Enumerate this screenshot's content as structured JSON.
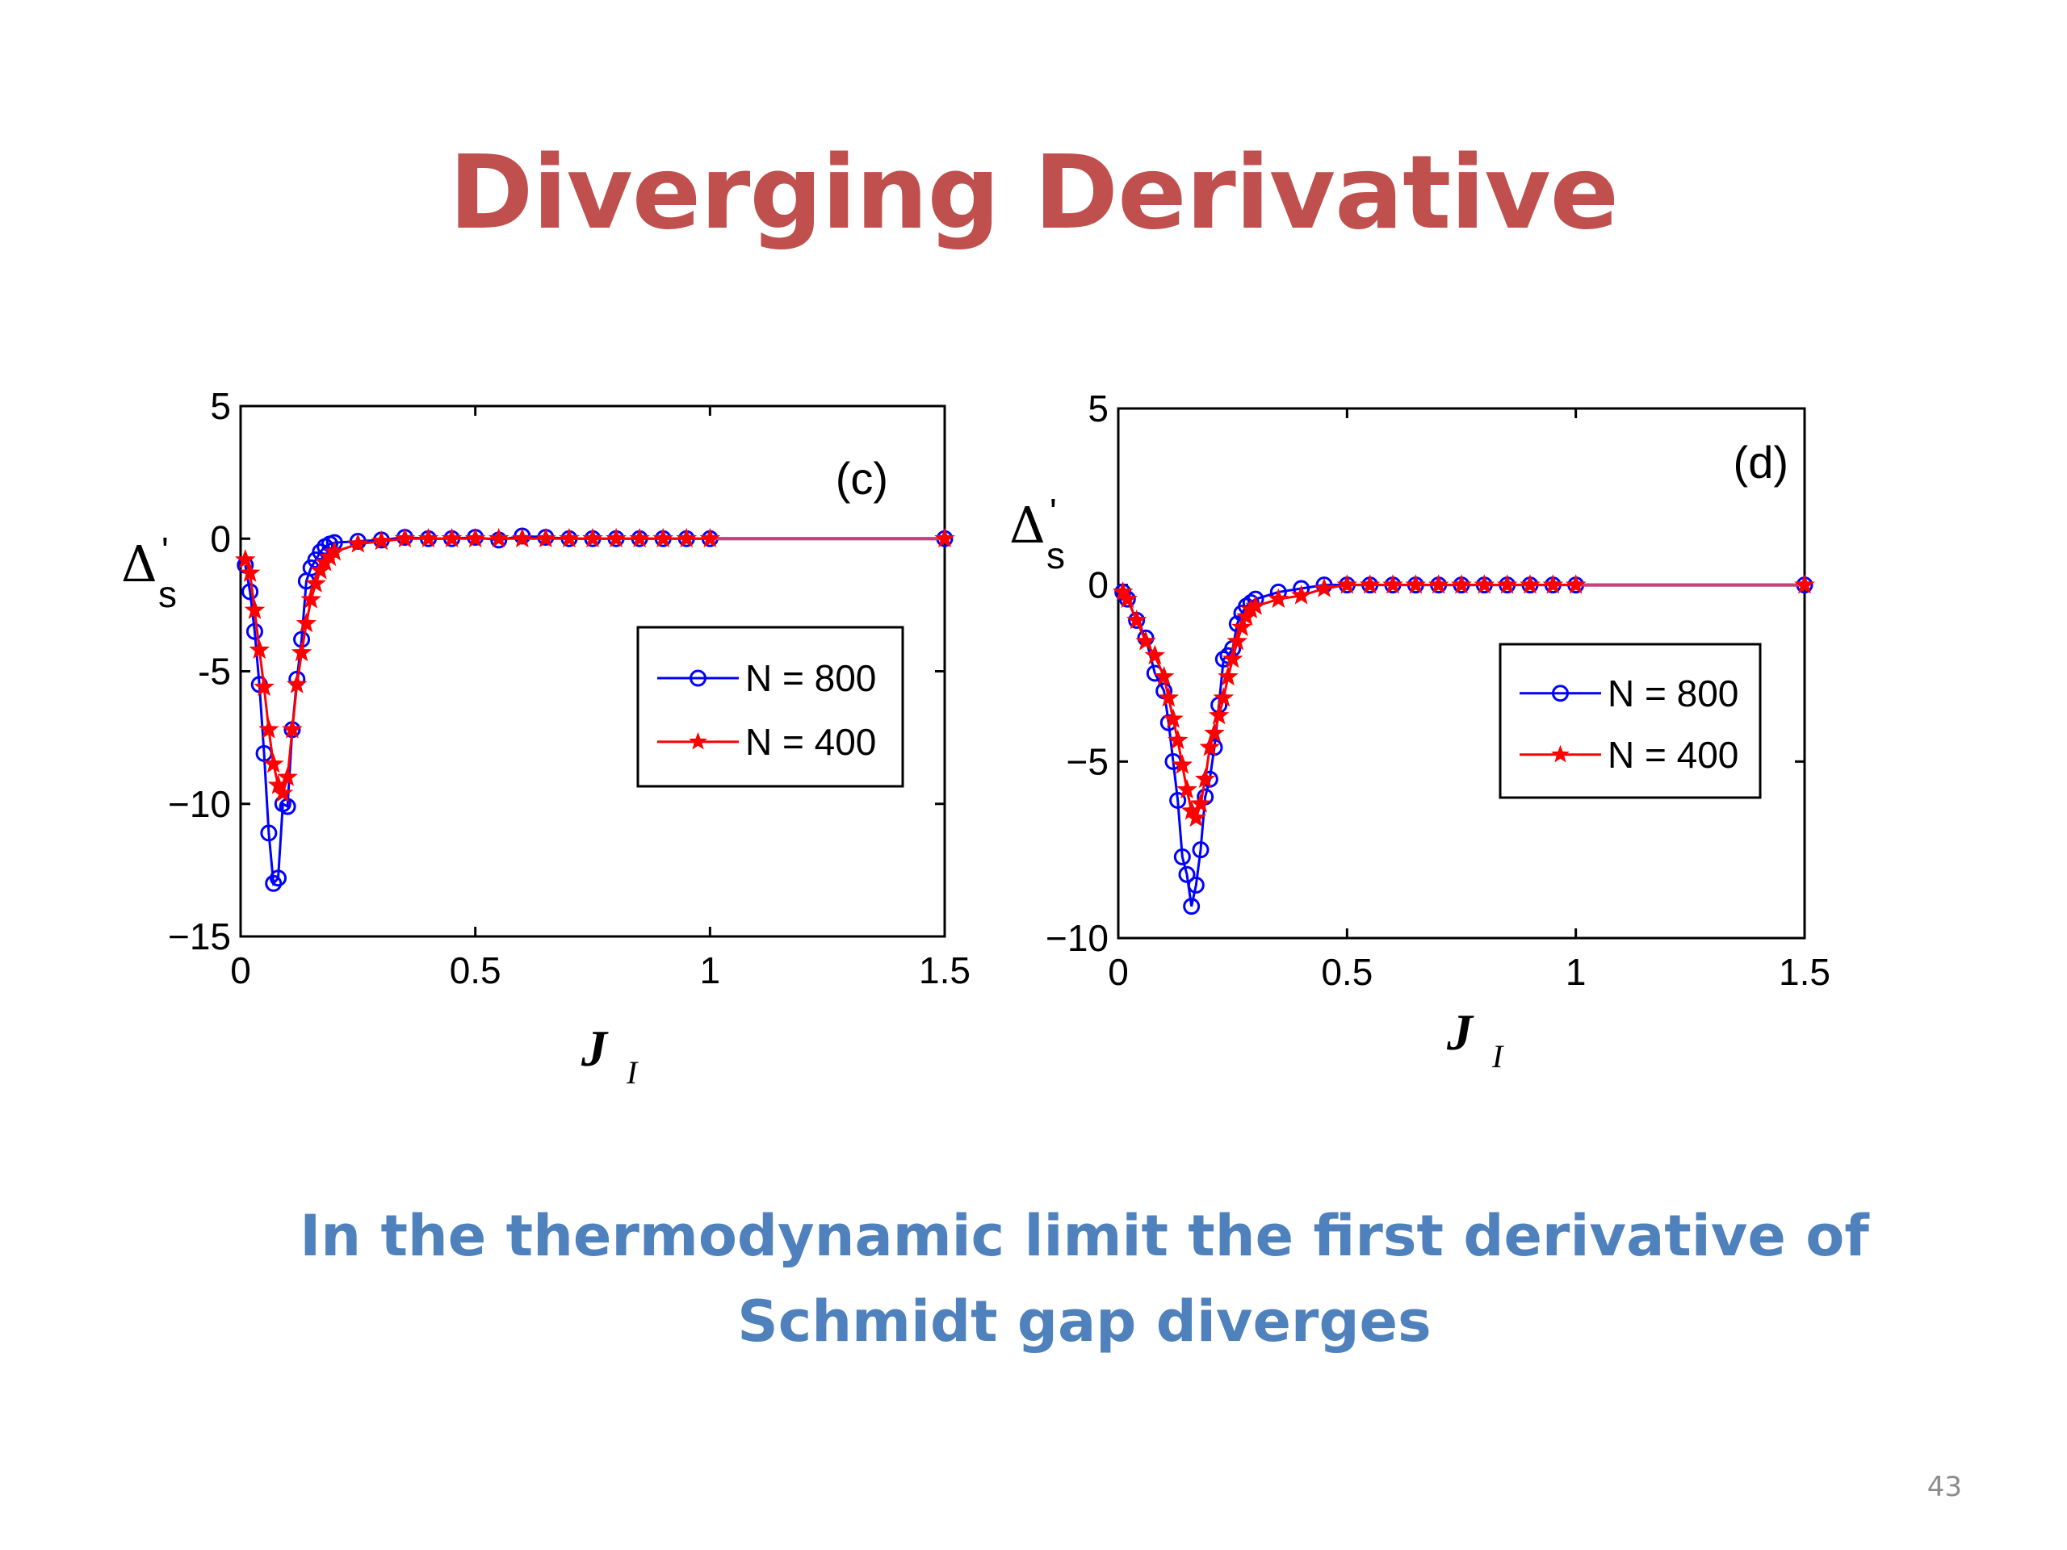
{
  "slide": {
    "title": "Diverging Derivative",
    "caption_line1": "In the thermodynamic limit the first derivative of",
    "caption_line2": "Schmidt gap diverges",
    "page_number": "43"
  },
  "colors": {
    "title": "#c0504d",
    "caption": "#4f81bd",
    "series_n800": "#0000ff",
    "series_n400": "#ff0000",
    "tail_line": "#c8407a"
  },
  "chart_data": [
    {
      "type": "line",
      "panel_label": "(c)",
      "xlabel": "J",
      "xlabel_sub": "I",
      "ylabel": "Δ",
      "ylabel_sub": "s",
      "ylabel_prime": "'",
      "xlim": [
        0,
        1.5
      ],
      "ylim": [
        -15,
        5
      ],
      "xticks": [
        0,
        0.5,
        1,
        1.5
      ],
      "xtick_labels": [
        "0",
        "0.5",
        "1",
        "1.5"
      ],
      "yticks": [
        5,
        0,
        -5,
        -10,
        -15
      ],
      "ytick_labels": [
        "5",
        "0",
        "-5",
        "−10",
        "−15"
      ],
      "grid": false,
      "legend_position": "right",
      "series": [
        {
          "name": "N = 800",
          "color": "#0000ff",
          "marker": "circle",
          "x": [
            0.01,
            0.02,
            0.03,
            0.04,
            0.05,
            0.06,
            0.07,
            0.08,
            0.09,
            0.1,
            0.11,
            0.12,
            0.13,
            0.14,
            0.15,
            0.16,
            0.17,
            0.18,
            0.19,
            0.2,
            0.25,
            0.3,
            0.35,
            0.4,
            0.45,
            0.5,
            0.55,
            0.6,
            0.65,
            0.7,
            0.75,
            0.8,
            0.85,
            0.9,
            0.95,
            1.0,
            1.5
          ],
          "y": [
            -1.0,
            -2.0,
            -3.5,
            -5.5,
            -8.1,
            -11.1,
            -13.0,
            -12.8,
            -10.0,
            -10.1,
            -7.2,
            -5.3,
            -3.8,
            -1.6,
            -1.1,
            -0.8,
            -0.5,
            -0.3,
            -0.2,
            -0.15,
            -0.1,
            -0.05,
            0.05,
            0.0,
            0.0,
            0.05,
            -0.05,
            0.1,
            0.05,
            0.0,
            0.0,
            0.0,
            0.0,
            0.0,
            0.0,
            0.0,
            0.0
          ]
        },
        {
          "name": "N = 400",
          "color": "#ff0000",
          "marker": "star",
          "x": [
            0.01,
            0.02,
            0.03,
            0.04,
            0.05,
            0.06,
            0.07,
            0.08,
            0.09,
            0.1,
            0.11,
            0.12,
            0.13,
            0.14,
            0.15,
            0.16,
            0.17,
            0.18,
            0.19,
            0.2,
            0.25,
            0.3,
            0.35,
            0.4,
            0.45,
            0.5,
            0.55,
            0.6,
            0.65,
            0.7,
            0.75,
            0.8,
            0.85,
            0.9,
            0.95,
            1.0,
            1.5
          ],
          "y": [
            -0.8,
            -1.3,
            -2.7,
            -4.2,
            -5.6,
            -7.2,
            -8.5,
            -9.3,
            -9.6,
            -9.0,
            -7.2,
            -5.5,
            -4.3,
            -3.2,
            -2.3,
            -1.7,
            -1.2,
            -0.9,
            -0.7,
            -0.5,
            -0.2,
            -0.1,
            0.0,
            0.0,
            0.0,
            0.0,
            0.0,
            0.0,
            0.0,
            0.0,
            0.0,
            0.0,
            0.0,
            0.0,
            0.0,
            0.0,
            0.0
          ]
        }
      ]
    },
    {
      "type": "line",
      "panel_label": "(d)",
      "xlabel": "J",
      "xlabel_sub": "I",
      "ylabel": "Δ",
      "ylabel_sub": "s",
      "ylabel_prime": "'",
      "xlim": [
        0,
        1.5
      ],
      "ylim": [
        -10,
        5
      ],
      "xticks": [
        0,
        0.5,
        1,
        1.5
      ],
      "xtick_labels": [
        "0",
        "0.5",
        "1",
        "1.5"
      ],
      "yticks": [
        5,
        0,
        -5,
        -10
      ],
      "ytick_labels": [
        "5",
        "0",
        "−5",
        "−10"
      ],
      "grid": false,
      "legend_position": "right",
      "series": [
        {
          "name": "N = 800",
          "color": "#0000ff",
          "marker": "circle",
          "x": [
            0.01,
            0.02,
            0.04,
            0.06,
            0.08,
            0.1,
            0.11,
            0.12,
            0.13,
            0.14,
            0.15,
            0.16,
            0.17,
            0.18,
            0.19,
            0.2,
            0.21,
            0.22,
            0.23,
            0.24,
            0.25,
            0.26,
            0.27,
            0.28,
            0.29,
            0.3,
            0.35,
            0.4,
            0.45,
            0.5,
            0.55,
            0.6,
            0.65,
            0.7,
            0.75,
            0.8,
            0.85,
            0.9,
            0.95,
            1.0,
            1.5
          ],
          "y": [
            -0.2,
            -0.4,
            -1.0,
            -1.5,
            -2.5,
            -3.0,
            -3.9,
            -5.0,
            -6.1,
            -7.7,
            -8.2,
            -9.1,
            -8.5,
            -7.5,
            -6.0,
            -5.5,
            -4.6,
            -3.4,
            -2.1,
            -2.0,
            -1.8,
            -1.1,
            -0.8,
            -0.6,
            -0.5,
            -0.4,
            -0.2,
            -0.1,
            0.0,
            0.0,
            0.0,
            0.0,
            0.0,
            0.0,
            0.0,
            0.0,
            0.0,
            0.0,
            0.0,
            0.0,
            0.0
          ]
        },
        {
          "name": "N = 400",
          "color": "#ff0000",
          "marker": "star",
          "x": [
            0.01,
            0.02,
            0.04,
            0.06,
            0.08,
            0.1,
            0.11,
            0.12,
            0.13,
            0.14,
            0.15,
            0.16,
            0.17,
            0.18,
            0.19,
            0.2,
            0.21,
            0.22,
            0.23,
            0.24,
            0.25,
            0.26,
            0.27,
            0.28,
            0.29,
            0.3,
            0.35,
            0.4,
            0.45,
            0.5,
            0.55,
            0.6,
            0.65,
            0.7,
            0.75,
            0.8,
            0.85,
            0.9,
            0.95,
            1.0,
            1.5
          ],
          "y": [
            -0.2,
            -0.4,
            -1.0,
            -1.6,
            -2.0,
            -2.6,
            -3.2,
            -3.8,
            -4.4,
            -5.1,
            -5.8,
            -6.4,
            -6.6,
            -6.2,
            -5.5,
            -4.6,
            -4.2,
            -3.7,
            -3.2,
            -2.6,
            -2.1,
            -1.6,
            -1.2,
            -0.9,
            -0.7,
            -0.6,
            -0.4,
            -0.3,
            -0.1,
            0.0,
            0.0,
            0.0,
            0.0,
            0.0,
            0.0,
            0.0,
            0.0,
            0.0,
            0.0,
            0.0,
            0.0
          ]
        }
      ]
    }
  ]
}
